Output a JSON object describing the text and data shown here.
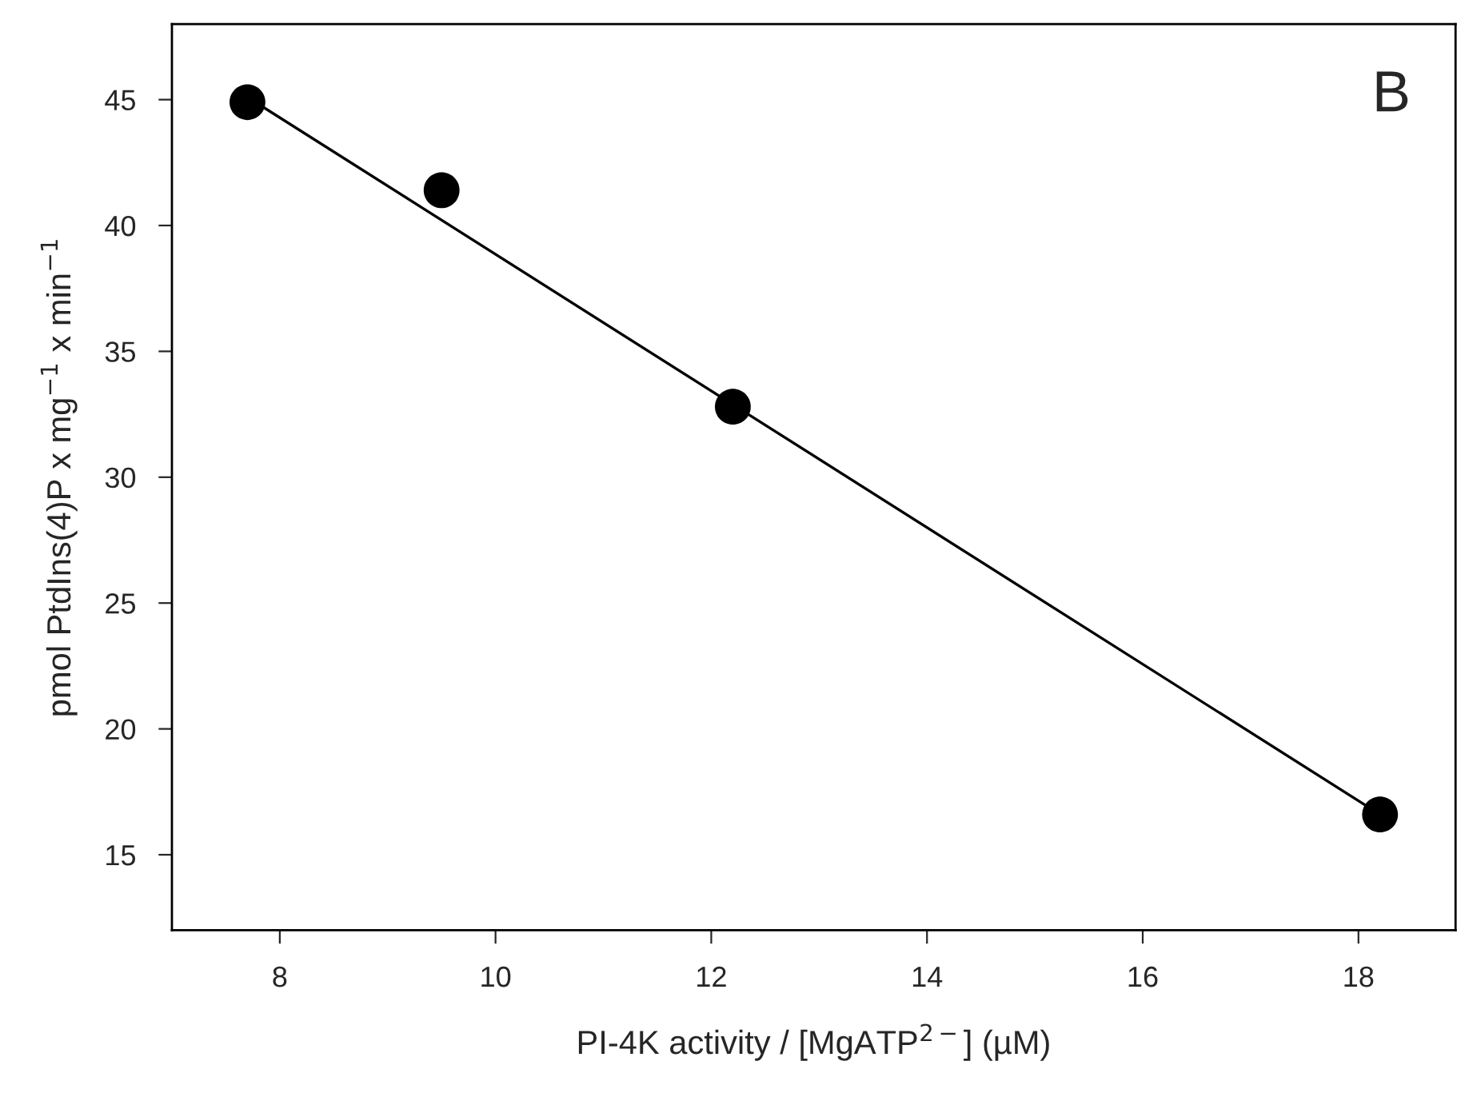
{
  "chart_data": {
    "type": "scatter",
    "xlabel": "PI-4K activity / [MgATP$^{2−}$] (µM)",
    "ylabel": "pmol PtdIns(4)P x mg$^{−1}$ x min$^{−1}$",
    "annotations": [
      "B"
    ],
    "series": [
      {
        "color": "#000000",
        "marker": "circle",
        "x": [
          7.7,
          9.5,
          12.2,
          18.2
        ],
        "values": [
          44.9,
          41.4,
          32.8,
          16.6
        ]
      },
      {
        "type": "line",
        "color": "#000000",
        "line_style": "solid",
        "x": [
          7.7,
          18.2
        ],
        "values": [
          45.1,
          16.6
        ]
      }
    ],
    "xlim": [
      7.0,
      18.9
    ],
    "xticks": [
      8,
      10,
      12,
      14,
      16,
      18
    ],
    "ylim": [
      12,
      48
    ],
    "yticks": [
      15,
      20,
      25,
      30,
      35,
      40,
      45
    ],
    "grid": false,
    "legend": false
  }
}
